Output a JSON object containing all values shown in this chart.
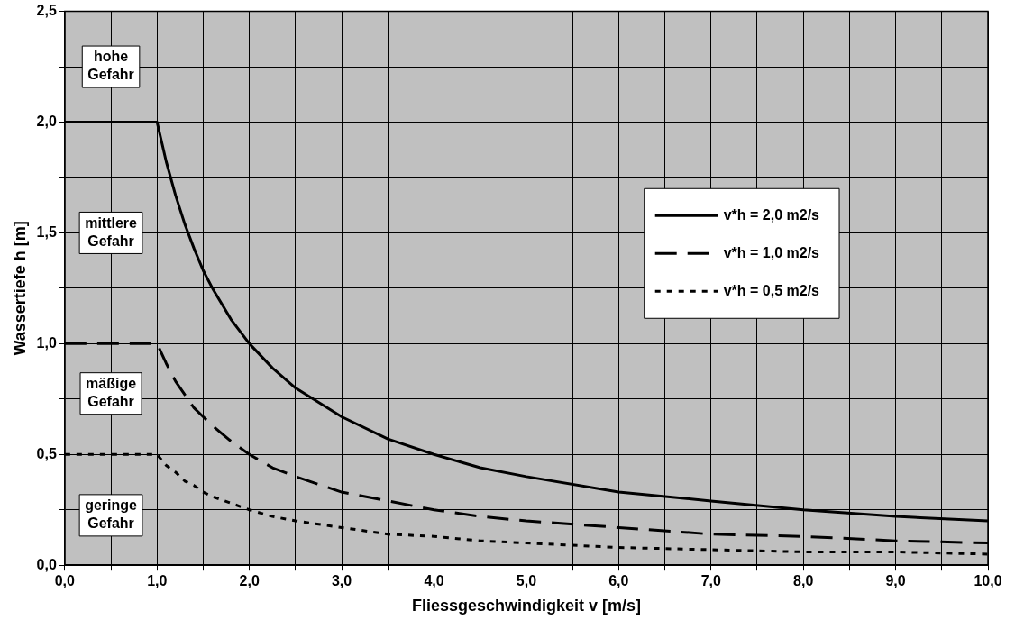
{
  "chart_data": {
    "type": "line",
    "xlabel": "Fliessgeschwindigkeit v [m/s]",
    "ylabel": "Wassertiefe h [m]",
    "xlim": [
      0,
      10
    ],
    "ylim": [
      0,
      2.5
    ],
    "xticks": [
      {
        "value": 0,
        "label": "0,0"
      },
      {
        "value": 0.5,
        "label": null
      },
      {
        "value": 1,
        "label": "1,0"
      },
      {
        "value": 1.5,
        "label": null
      },
      {
        "value": 2,
        "label": "2,0"
      },
      {
        "value": 2.5,
        "label": null
      },
      {
        "value": 3,
        "label": "3,0"
      },
      {
        "value": 3.5,
        "label": null
      },
      {
        "value": 4,
        "label": "4,0"
      },
      {
        "value": 4.5,
        "label": null
      },
      {
        "value": 5,
        "label": "5,0"
      },
      {
        "value": 5.5,
        "label": null
      },
      {
        "value": 6,
        "label": "6,0"
      },
      {
        "value": 6.5,
        "label": null
      },
      {
        "value": 7,
        "label": "7,0"
      },
      {
        "value": 7.5,
        "label": null
      },
      {
        "value": 8,
        "label": "8,0"
      },
      {
        "value": 8.5,
        "label": null
      },
      {
        "value": 9,
        "label": "9,0"
      },
      {
        "value": 9.5,
        "label": null
      },
      {
        "value": 10,
        "label": "10,0"
      }
    ],
    "yticks": [
      {
        "value": 0,
        "label": "0,0"
      },
      {
        "value": 0.25,
        "label": null
      },
      {
        "value": 0.5,
        "label": "0,5"
      },
      {
        "value": 0.75,
        "label": null
      },
      {
        "value": 1,
        "label": "1,0"
      },
      {
        "value": 1.25,
        "label": null
      },
      {
        "value": 1.5,
        "label": "1,5"
      },
      {
        "value": 1.75,
        "label": null
      },
      {
        "value": 2,
        "label": "2,0"
      },
      {
        "value": 2.25,
        "label": null
      },
      {
        "value": 2.5,
        "label": "2,5"
      }
    ],
    "grid": true,
    "legend": "right",
    "marker": "none",
    "x": [
      0,
      0.5,
      1,
      1.1,
      1.2,
      1.3,
      1.4,
      1.5,
      1.6,
      1.8,
      2,
      2.25,
      2.5,
      3,
      3.5,
      4,
      4.5,
      5,
      6,
      7,
      8,
      9,
      10
    ],
    "series": [
      {
        "name": "v*h = 2,0 m2/s",
        "color": "#000000",
        "line_style": "solid",
        "values": [
          2,
          2,
          2,
          1.82,
          1.67,
          1.54,
          1.43,
          1.33,
          1.25,
          1.11,
          1.0,
          0.89,
          0.8,
          0.67,
          0.57,
          0.5,
          0.44,
          0.4,
          0.33,
          0.29,
          0.25,
          0.22,
          0.2
        ]
      },
      {
        "name": "v*h = 1,0 m2/s",
        "color": "#000000",
        "line_style": "dashed",
        "values": [
          1,
          1,
          1,
          0.91,
          0.83,
          0.77,
          0.71,
          0.67,
          0.63,
          0.56,
          0.5,
          0.44,
          0.4,
          0.33,
          0.29,
          0.25,
          0.22,
          0.2,
          0.17,
          0.14,
          0.13,
          0.11,
          0.1
        ]
      },
      {
        "name": "v*h = 0,5 m2/s",
        "color": "#000000",
        "line_style": "dotted",
        "values": [
          0.5,
          0.5,
          0.5,
          0.45,
          0.42,
          0.38,
          0.36,
          0.33,
          0.31,
          0.28,
          0.25,
          0.22,
          0.2,
          0.17,
          0.14,
          0.13,
          0.11,
          0.1,
          0.08,
          0.07,
          0.06,
          0.06,
          0.05
        ]
      }
    ],
    "annotations": [
      "hohe Gefahr",
      "mittlere Gefahr",
      "mäßige Gefahr",
      "geringe Gefahr"
    ]
  }
}
